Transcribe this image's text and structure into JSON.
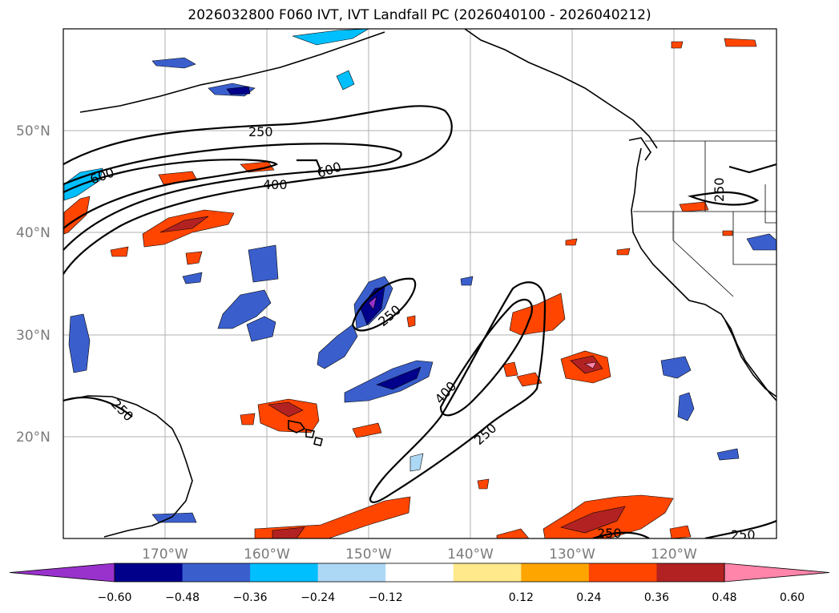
{
  "title": "2026032800 F060 IVT, IVT Landfall PC (2026040100 - 2026040212)",
  "map": {
    "lat_labels": [
      "50°N",
      "40°N",
      "30°N",
      "20°N"
    ],
    "lon_labels": [
      "170°W",
      "160°W",
      "150°W",
      "140°W",
      "130°W",
      "120°W"
    ],
    "contour_labels": [
      "250",
      "600",
      "400",
      "600",
      "250",
      "400",
      "250",
      "250",
      "250",
      "250",
      "250"
    ]
  },
  "colorbar": {
    "labels": [
      "−0.60",
      "−0.48",
      "−0.36",
      "−0.24",
      "−0.12",
      "0.12",
      "0.24",
      "0.36",
      "0.48",
      "0.60"
    ],
    "colors": [
      "#9932cc",
      "#00008b",
      "#3a5fcd",
      "#00bfff",
      "#add8f5",
      "#ffffff",
      "#ffe98a",
      "#ffa500",
      "#ff4500",
      "#b22222",
      "#ff85aa"
    ]
  },
  "colors": {
    "land_outline": "#000000",
    "grid": "#b0b0b0",
    "contour": "#000000"
  }
}
